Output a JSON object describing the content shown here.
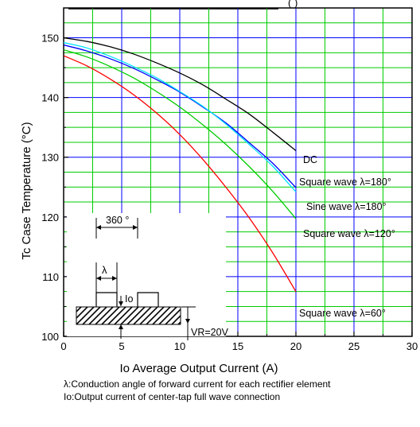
{
  "chart_data": {
    "type": "line",
    "title_fragment": "(        )",
    "ylabel": "Tc   Case Temperature   (°C)",
    "xlabel": "Io   Average Output Current   (A)",
    "xlim": [
      0,
      30
    ],
    "ylim": [
      100,
      155
    ],
    "x_ticks": [
      "0",
      "5",
      "10",
      "15",
      "20",
      "25",
      "30"
    ],
    "y_ticks": [
      "100",
      "110",
      "120",
      "130",
      "140",
      "150"
    ],
    "grid": true,
    "series": [
      {
        "name": "DC",
        "color": "#000000",
        "x": [
          0,
          2,
          4,
          6,
          8,
          10,
          12,
          14,
          16,
          18,
          20
        ],
        "y": [
          150,
          149.4,
          148.5,
          147.3,
          145.8,
          144.1,
          142.1,
          139.7,
          137.2,
          134.2,
          131.1
        ]
      },
      {
        "name": "Square wave λ=180°",
        "color": "#0000ff",
        "x": [
          0,
          2,
          4,
          6,
          8,
          10,
          12,
          14,
          16,
          18,
          20
        ],
        "y": [
          148.8,
          147.8,
          146.5,
          144.9,
          143.0,
          140.9,
          138.4,
          135.7,
          132.4,
          129.0,
          124.9
        ]
      },
      {
        "name": "Sine wave λ=180°",
        "color": "#00e0ff",
        "x": [
          0,
          2,
          4,
          6,
          8,
          10,
          12,
          14,
          16,
          18,
          20
        ],
        "y": [
          149.2,
          148.3,
          146.9,
          145.2,
          143.3,
          141.0,
          138.5,
          135.5,
          132.1,
          128.5,
          124.2
        ]
      },
      {
        "name": "Square wave λ=120°",
        "color": "#00cc00",
        "x": [
          0,
          2,
          4,
          6,
          8,
          10,
          12,
          14,
          16,
          18,
          20
        ],
        "y": [
          148.0,
          146.8,
          145.2,
          143.3,
          141.0,
          138.4,
          135.4,
          132.1,
          128.4,
          124.3,
          119.7
        ]
      },
      {
        "name": "Square wave λ=60°",
        "color": "#ff0000",
        "x": [
          0,
          2,
          4,
          6,
          8,
          10,
          12,
          14,
          16,
          18,
          20
        ],
        "y": [
          147.0,
          145.3,
          143.1,
          140.5,
          137.4,
          133.8,
          129.6,
          124.9,
          119.8,
          114.0,
          107.5
        ]
      }
    ],
    "curve_labels": {
      "dc": "DC",
      "sq180": "Square wave λ=180°",
      "sine180": "Sine wave λ=180°",
      "sq120": "Square wave λ=120°",
      "sq60": "Square wave λ=60°"
    },
    "inset": {
      "angle_label": "360 °",
      "lambda_label": "λ",
      "io_label": "Io",
      "vr_label": "VR=20V"
    }
  },
  "notes": {
    "line1": "λ:Conduction angle of forward current for each rectifier element",
    "line2": "Io:Output current of center-tap full wave connection"
  }
}
